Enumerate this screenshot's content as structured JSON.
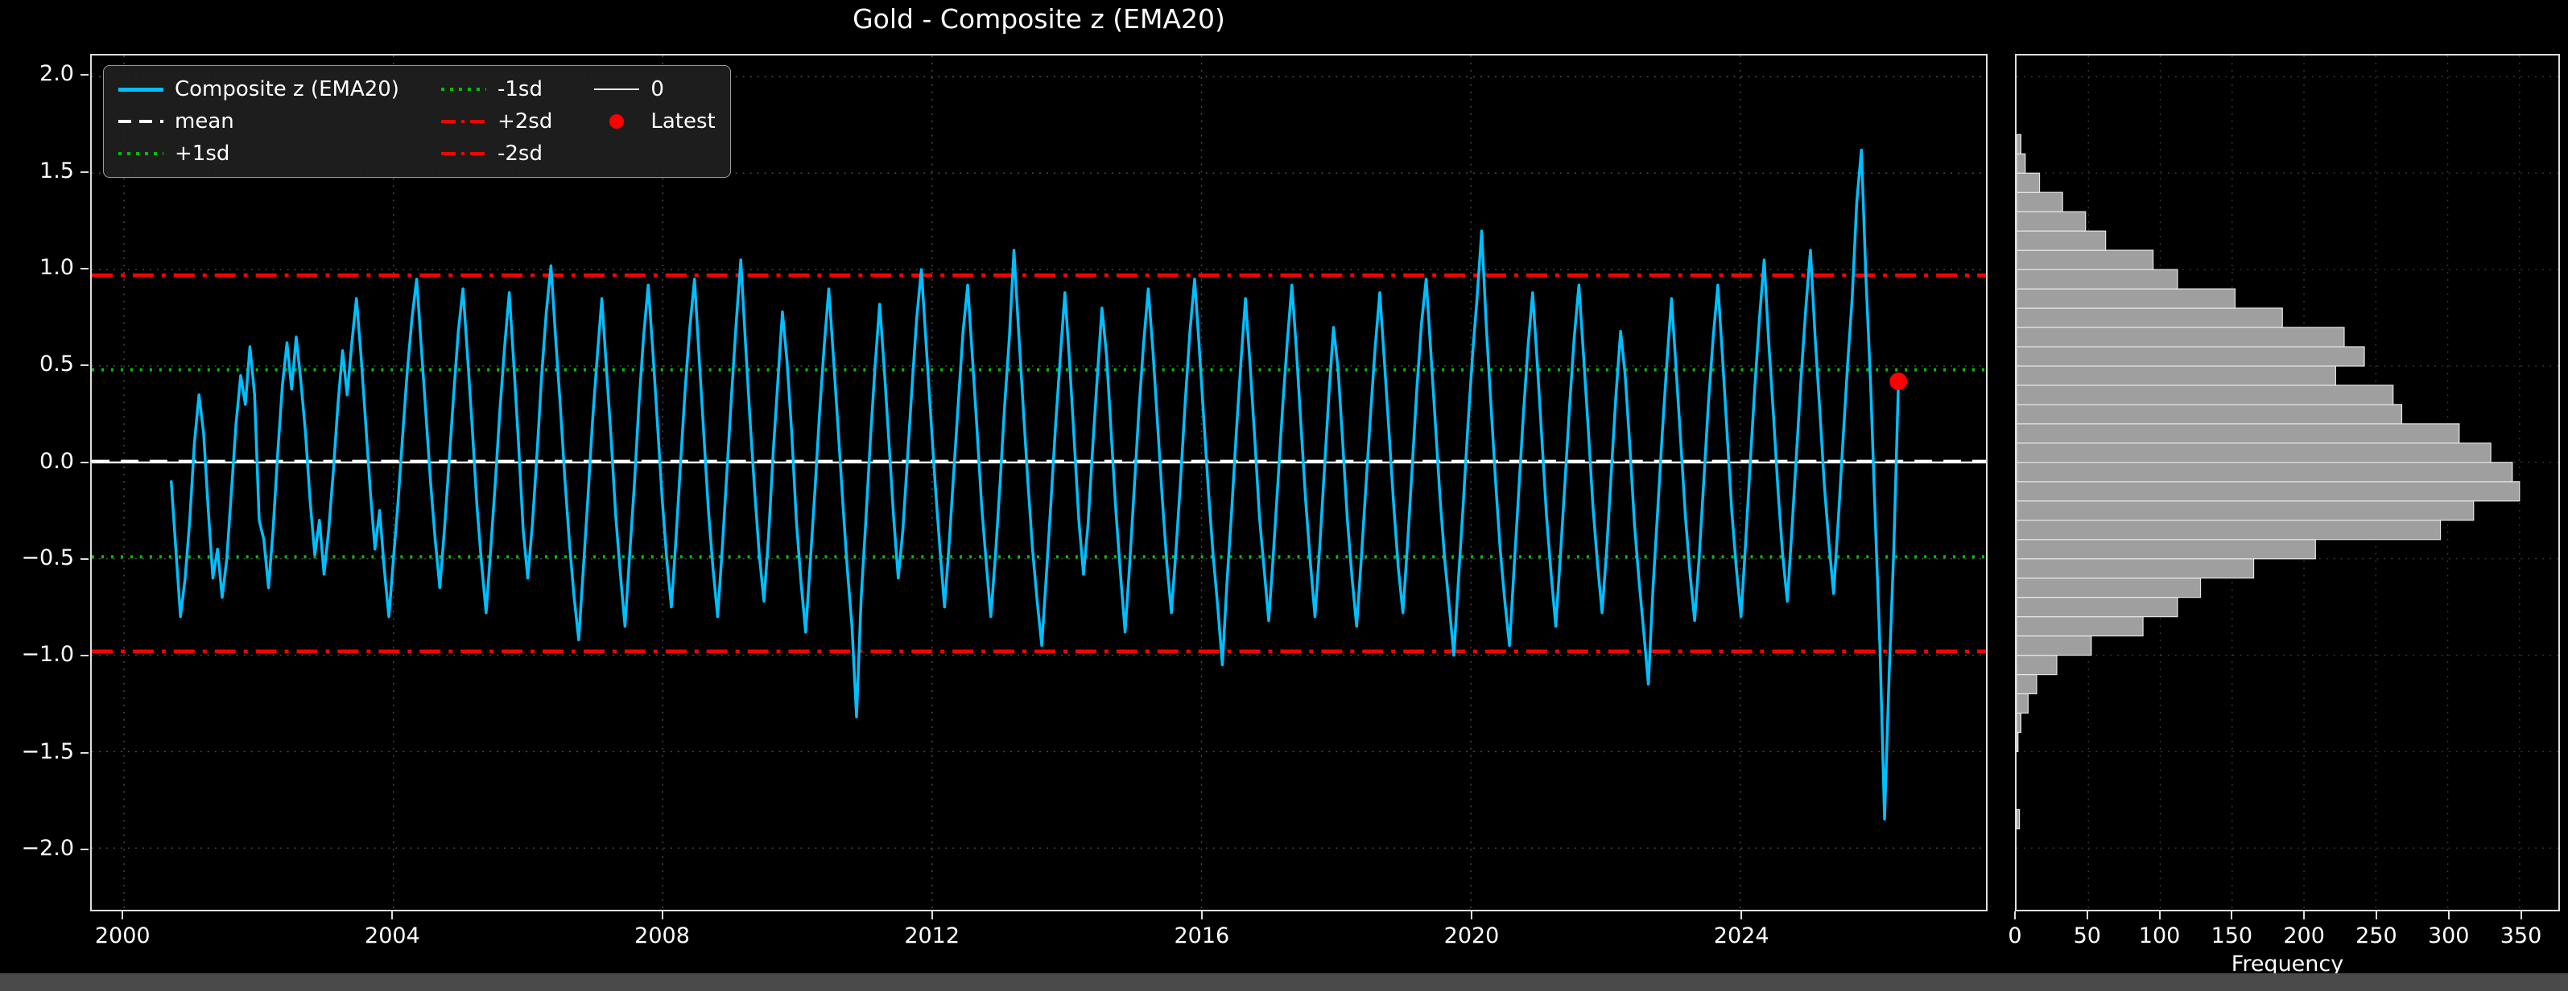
{
  "legend": {
    "items": [
      {
        "label": "Composite z (EMA20)",
        "swatch": "solid",
        "color": "#00BFFF",
        "thickness": 5
      },
      {
        "label": "mean",
        "swatch": "dashed",
        "color": "#ffffff",
        "thickness": 4
      },
      {
        "label": "+1sd",
        "swatch": "dotted",
        "color": "#00c000",
        "thickness": 4
      },
      {
        "label": "-1sd",
        "swatch": "dotted",
        "color": "#00c000",
        "thickness": 4
      },
      {
        "label": "+2sd",
        "swatch": "dashdot",
        "color": "#ff0000",
        "thickness": 4
      },
      {
        "label": "-2sd",
        "swatch": "dashdot",
        "color": "#ff0000",
        "thickness": 4
      },
      {
        "label": "0",
        "swatch": "solid",
        "color": "#eaeaea",
        "thickness": 2
      },
      {
        "label": "Latest",
        "swatch": "dot",
        "color": "#ff0000",
        "thickness": 18
      }
    ]
  },
  "chart_data": {
    "timeseries": {
      "type": "line",
      "title": "Gold - Composite z (EMA20)",
      "series_name": "Composite z (EMA20)",
      "color": "#00BFFF",
      "xlim": [
        1999.52,
        2027.65
      ],
      "ylim": [
        -2.32,
        2.11
      ],
      "x_ticks": [
        2000,
        2004,
        2008,
        2012,
        2016,
        2020,
        2024
      ],
      "y_ticks": [
        2.0,
        1.5,
        1.0,
        0.5,
        0.0,
        -0.5,
        -1.0,
        -1.5,
        -2.0
      ],
      "reference_lines": [
        {
          "label": "0",
          "value": 0.0,
          "color": "#eaeaea",
          "dash": "solid"
        },
        {
          "label": "+1sd",
          "value": 0.48,
          "color": "#00c000",
          "dash": "dotted"
        },
        {
          "label": "-1sd",
          "value": -0.49,
          "color": "#00c000",
          "dash": "dotted"
        },
        {
          "label": "+2sd",
          "value": 0.97,
          "color": "#ff0000",
          "dash": "dashdot"
        },
        {
          "label": "-2sd",
          "value": -0.98,
          "color": "#ff0000",
          "dash": "dashdot"
        },
        {
          "label": "mean",
          "value": 0.005,
          "color": "#ffffff",
          "dash": "dashed"
        }
      ],
      "latest": {
        "x": 2026.35,
        "value": 0.42,
        "color": "#ff0000",
        "label": "Latest"
      },
      "x_start": 2000.7,
      "x_end": 2026.35,
      "values": [
        -0.1,
        -0.45,
        -0.8,
        -0.6,
        -0.3,
        0.1,
        0.35,
        0.15,
        -0.25,
        -0.6,
        -0.45,
        -0.7,
        -0.5,
        -0.15,
        0.2,
        0.45,
        0.3,
        0.6,
        0.35,
        -0.3,
        -0.4,
        -0.65,
        -0.35,
        0.05,
        0.4,
        0.62,
        0.38,
        0.65,
        0.42,
        0.15,
        -0.2,
        -0.48,
        -0.3,
        -0.58,
        -0.35,
        -0.05,
        0.3,
        0.58,
        0.35,
        0.62,
        0.85,
        0.55,
        0.2,
        -0.15,
        -0.45,
        -0.25,
        -0.55,
        -0.8,
        -0.5,
        -0.2,
        0.15,
        0.48,
        0.75,
        0.95,
        0.6,
        0.25,
        -0.1,
        -0.4,
        -0.65,
        -0.35,
        0.0,
        0.35,
        0.68,
        0.9,
        0.55,
        0.18,
        -0.22,
        -0.52,
        -0.78,
        -0.45,
        -0.1,
        0.28,
        0.6,
        0.88,
        0.5,
        0.1,
        -0.35,
        -0.6,
        -0.32,
        0.05,
        0.45,
        0.78,
        1.02,
        0.65,
        0.3,
        -0.08,
        -0.42,
        -0.7,
        -0.92,
        -0.55,
        -0.18,
        0.22,
        0.55,
        0.85,
        0.48,
        0.12,
        -0.28,
        -0.58,
        -0.85,
        -0.48,
        -0.12,
        0.3,
        0.65,
        0.92,
        0.58,
        0.2,
        -0.18,
        -0.5,
        -0.75,
        -0.4,
        0.0,
        0.38,
        0.7,
        0.95,
        0.55,
        0.15,
        -0.25,
        -0.55,
        -0.8,
        -0.45,
        -0.05,
        0.35,
        0.72,
        1.05,
        0.62,
        0.22,
        -0.15,
        -0.48,
        -0.72,
        -0.38,
        0.05,
        0.42,
        0.78,
        0.52,
        0.15,
        -0.3,
        -0.62,
        -0.88,
        -0.52,
        -0.15,
        0.25,
        0.6,
        0.9,
        0.55,
        0.18,
        -0.2,
        -0.55,
        -0.85,
        -1.32,
        -0.7,
        -0.3,
        0.12,
        0.5,
        0.82,
        0.48,
        0.1,
        -0.28,
        -0.6,
        -0.35,
        0.02,
        0.4,
        0.75,
        1.0,
        0.62,
        0.25,
        -0.12,
        -0.45,
        -0.75,
        -0.42,
        -0.05,
        0.32,
        0.68,
        0.92,
        0.55,
        0.18,
        -0.22,
        -0.52,
        -0.8,
        -0.48,
        -0.1,
        0.3,
        0.65,
        1.1,
        0.68,
        0.28,
        -0.1,
        -0.45,
        -0.72,
        -0.95,
        -0.58,
        -0.2,
        0.2,
        0.55,
        0.88,
        0.52,
        0.12,
        -0.3,
        -0.58,
        -0.32,
        0.08,
        0.45,
        0.8,
        0.55,
        0.15,
        -0.25,
        -0.58,
        -0.88,
        -0.52,
        -0.12,
        0.28,
        0.62,
        0.9,
        0.58,
        0.2,
        -0.18,
        -0.52,
        -0.78,
        -0.45,
        -0.08,
        0.32,
        0.68,
        0.95,
        0.6,
        0.22,
        -0.15,
        -0.48,
        -0.75,
        -1.05,
        -0.62,
        -0.25,
        0.15,
        0.52,
        0.85,
        0.5,
        0.12,
        -0.28,
        -0.55,
        -0.82,
        -0.48,
        -0.1,
        0.28,
        0.62,
        0.92,
        0.58,
        0.18,
        -0.2,
        -0.52,
        -0.8,
        -0.45,
        -0.05,
        0.35,
        0.7,
        0.48,
        0.1,
        -0.3,
        -0.6,
        -0.85,
        -0.5,
        -0.12,
        0.25,
        0.6,
        0.88,
        0.52,
        0.15,
        -0.22,
        -0.55,
        -0.78,
        -0.42,
        -0.02,
        0.38,
        0.72,
        0.95,
        0.58,
        0.2,
        -0.18,
        -0.5,
        -0.75,
        -1.0,
        -0.6,
        -0.22,
        0.18,
        0.55,
        0.85,
        1.2,
        0.7,
        0.3,
        -0.1,
        -0.45,
        -0.72,
        -0.95,
        -0.55,
        -0.15,
        0.25,
        0.6,
        0.88,
        0.52,
        0.12,
        -0.28,
        -0.58,
        -0.85,
        -0.48,
        -0.1,
        0.3,
        0.65,
        0.92,
        0.55,
        0.18,
        -0.22,
        -0.52,
        -0.78,
        -0.45,
        -0.05,
        0.35,
        0.68,
        0.45,
        0.08,
        -0.32,
        -0.62,
        -0.88,
        -1.15,
        -0.65,
        -0.25,
        0.15,
        0.52,
        0.85,
        0.48,
        0.1,
        -0.28,
        -0.58,
        -0.82,
        -0.48,
        -0.08,
        0.32,
        0.65,
        0.92,
        0.55,
        0.15,
        -0.25,
        -0.55,
        -0.8,
        -0.42,
        0.0,
        0.4,
        0.75,
        1.05,
        0.62,
        0.25,
        -0.15,
        -0.48,
        -0.72,
        -0.35,
        0.05,
        0.45,
        0.8,
        1.1,
        0.65,
        0.28,
        -0.12,
        -0.42,
        -0.68,
        -0.3,
        0.1,
        0.5,
        0.85,
        1.35,
        1.62,
        0.95,
        0.4,
        -0.3,
        -0.95,
        -1.85,
        -1.1,
        -0.45,
        0.42
      ]
    },
    "histogram": {
      "type": "bar",
      "orientation": "horizontal",
      "xlabel": "Frequency",
      "x_ticks": [
        0,
        50,
        100,
        150,
        200,
        250,
        300,
        350
      ],
      "xlim": [
        0,
        377
      ],
      "bin_start": -1.9,
      "bin_width": 0.1,
      "counts": [
        2,
        0,
        0,
        0,
        1,
        3,
        8,
        14,
        28,
        52,
        88,
        112,
        128,
        165,
        208,
        295,
        318,
        350,
        345,
        330,
        308,
        268,
        262,
        222,
        242,
        228,
        185,
        152,
        112,
        95,
        62,
        48,
        32,
        16,
        6,
        3
      ],
      "bar_color": "#9f9f9f",
      "bar_edge": "#e6e6e6"
    }
  },
  "colors": {
    "background": "#000000",
    "text": "#ffffff",
    "spine": "#dedede",
    "grid": "#dcdcdc",
    "series": "#00BFFF",
    "sd1": "#00c000",
    "sd2": "#ff0000",
    "latest": "#ff0000"
  }
}
